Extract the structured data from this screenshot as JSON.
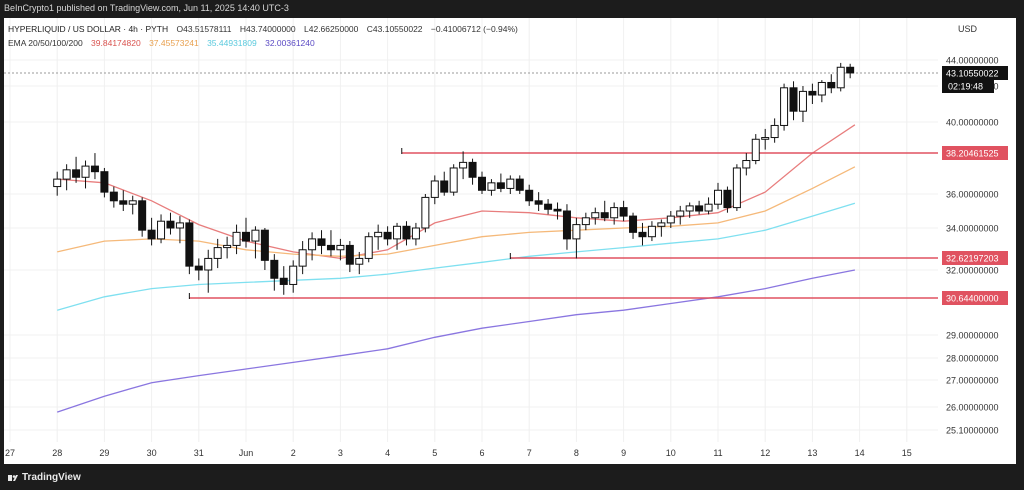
{
  "header": {
    "published": "BeInCrypto1 published on TradingView.com, Jun 11, 2025 14:40 UTC-3"
  },
  "legend": {
    "symbol": "HYPERLIQUID / US DOLLAR · 4h · PYTH",
    "open": "O43.51578111",
    "high": "H43.74000000",
    "low": "L42.66250000",
    "close": "C43.10550022",
    "change": "−0.41006712 (−0.94%)",
    "ema_label": "EMA 20/50/100/200",
    "ema20": "39.84174820",
    "ema50": "37.45573241",
    "ema100": "35.44931809",
    "ema200": "32.00361240"
  },
  "currency": "USD",
  "footer": {
    "brand": "TradingView"
  },
  "colors": {
    "up": "#ffffff",
    "down": "#111111",
    "ema20": "#e87d7d",
    "ema50": "#f5b97a",
    "ema100": "#7fe0f0",
    "ema200": "#8a76e0",
    "level": "#e05260"
  },
  "chart_data": {
    "type": "candlestick",
    "x_ticks": [
      "27",
      "28",
      "29",
      "30",
      "31",
      "Jun",
      "2",
      "3",
      "4",
      "5",
      "6",
      "7",
      "8",
      "9",
      "10",
      "11",
      "12",
      "13",
      "14",
      "15"
    ],
    "y_ticks": [
      "25.10000000",
      "26.00000000",
      "27.00000000",
      "28.00000000",
      "29.00000000",
      "30.64400000",
      "32.00000000",
      "32.62197203",
      "34.00000000",
      "36.00000000",
      "38.20461525",
      "40.00000000",
      "42.00000000",
      "43.10550022",
      "44.00000000"
    ],
    "y_tick_values": [
      25.1,
      26,
      27,
      28,
      29,
      30.644,
      32,
      32.62197203,
      34,
      36,
      38.20461525,
      40,
      42,
      43.10550022,
      44
    ],
    "y_tick_highlight": [
      "",
      "",
      "",
      "",
      "",
      "level",
      "",
      "level",
      "",
      "",
      "level",
      "",
      "",
      "price",
      ""
    ],
    "current_price": "43.10550022",
    "countdown": "02:19:48",
    "levels": [
      {
        "value": 38.20461525,
        "label": "38.20461525",
        "start_day": 3.3
      },
      {
        "value": 32.62197203,
        "label": "32.62197203",
        "start_day": 5.6
      },
      {
        "value": 30.644,
        "label": "30.64400000",
        "start_day": -1.2
      }
    ],
    "ohlc": [
      {
        "t": -4.0,
        "o": 36.4,
        "h": 37.2,
        "l": 35.9,
        "c": 36.8
      },
      {
        "t": -3.8,
        "o": 36.8,
        "h": 37.6,
        "l": 36.2,
        "c": 37.3
      },
      {
        "t": -3.6,
        "o": 37.3,
        "h": 38.0,
        "l": 36.6,
        "c": 36.9
      },
      {
        "t": -3.4,
        "o": 36.9,
        "h": 37.8,
        "l": 36.3,
        "c": 37.5
      },
      {
        "t": -3.2,
        "o": 37.5,
        "h": 38.2,
        "l": 36.8,
        "c": 37.2
      },
      {
        "t": -3.0,
        "o": 37.2,
        "h": 37.4,
        "l": 35.8,
        "c": 36.1
      },
      {
        "t": -2.8,
        "o": 36.1,
        "h": 36.4,
        "l": 35.2,
        "c": 35.6
      },
      {
        "t": -2.6,
        "o": 35.6,
        "h": 36.2,
        "l": 35.0,
        "c": 35.4
      },
      {
        "t": -2.4,
        "o": 35.4,
        "h": 35.9,
        "l": 34.8,
        "c": 35.6
      },
      {
        "t": -2.2,
        "o": 35.6,
        "h": 35.8,
        "l": 33.6,
        "c": 33.9
      },
      {
        "t": -2.0,
        "o": 33.9,
        "h": 34.6,
        "l": 33.2,
        "c": 33.5
      },
      {
        "t": -1.8,
        "o": 33.5,
        "h": 34.8,
        "l": 33.3,
        "c": 34.4
      },
      {
        "t": -1.6,
        "o": 34.4,
        "h": 34.9,
        "l": 33.7,
        "c": 34.0
      },
      {
        "t": -1.4,
        "o": 34.0,
        "h": 34.7,
        "l": 33.3,
        "c": 34.3
      },
      {
        "t": -1.2,
        "o": 34.3,
        "h": 34.5,
        "l": 31.8,
        "c": 32.2
      },
      {
        "t": -1.0,
        "o": 32.2,
        "h": 32.6,
        "l": 31.5,
        "c": 32.0
      },
      {
        "t": -0.8,
        "o": 32.0,
        "h": 33.0,
        "l": 30.9,
        "c": 32.6
      },
      {
        "t": -0.6,
        "o": 32.6,
        "h": 33.5,
        "l": 32.1,
        "c": 33.1
      },
      {
        "t": -0.4,
        "o": 33.1,
        "h": 33.6,
        "l": 32.6,
        "c": 33.2
      },
      {
        "t": -0.2,
        "o": 33.2,
        "h": 34.2,
        "l": 32.8,
        "c": 33.8
      },
      {
        "t": 0.0,
        "o": 33.8,
        "h": 34.6,
        "l": 33.1,
        "c": 33.4
      },
      {
        "t": 0.2,
        "o": 33.4,
        "h": 34.1,
        "l": 32.6,
        "c": 33.9
      },
      {
        "t": 0.4,
        "o": 33.9,
        "h": 34.0,
        "l": 32.0,
        "c": 32.5
      },
      {
        "t": 0.6,
        "o": 32.5,
        "h": 32.8,
        "l": 31.0,
        "c": 31.6
      },
      {
        "t": 0.8,
        "o": 31.6,
        "h": 32.2,
        "l": 30.8,
        "c": 31.3
      },
      {
        "t": 1.0,
        "o": 31.3,
        "h": 32.5,
        "l": 30.9,
        "c": 32.2
      },
      {
        "t": 1.2,
        "o": 32.2,
        "h": 33.4,
        "l": 31.8,
        "c": 33.0
      },
      {
        "t": 1.4,
        "o": 33.0,
        "h": 33.8,
        "l": 32.5,
        "c": 33.5
      },
      {
        "t": 1.6,
        "o": 33.5,
        "h": 33.9,
        "l": 32.8,
        "c": 33.2
      },
      {
        "t": 1.8,
        "o": 33.2,
        "h": 33.9,
        "l": 32.7,
        "c": 33.0
      },
      {
        "t": 2.0,
        "o": 33.0,
        "h": 33.5,
        "l": 32.5,
        "c": 33.2
      },
      {
        "t": 2.2,
        "o": 33.2,
        "h": 33.4,
        "l": 31.9,
        "c": 32.3
      },
      {
        "t": 2.4,
        "o": 32.3,
        "h": 32.9,
        "l": 31.8,
        "c": 32.6
      },
      {
        "t": 2.6,
        "o": 32.6,
        "h": 33.8,
        "l": 32.4,
        "c": 33.6
      },
      {
        "t": 2.8,
        "o": 33.6,
        "h": 34.2,
        "l": 33.0,
        "c": 33.8
      },
      {
        "t": 3.0,
        "o": 33.8,
        "h": 34.1,
        "l": 33.2,
        "c": 33.5
      },
      {
        "t": 3.2,
        "o": 33.5,
        "h": 34.3,
        "l": 33.0,
        "c": 34.1
      },
      {
        "t": 3.4,
        "o": 34.1,
        "h": 34.4,
        "l": 33.2,
        "c": 33.5
      },
      {
        "t": 3.6,
        "o": 33.5,
        "h": 34.3,
        "l": 33.2,
        "c": 34.0
      },
      {
        "t": 3.8,
        "o": 34.0,
        "h": 36.0,
        "l": 33.8,
        "c": 35.8
      },
      {
        "t": 4.0,
        "o": 35.8,
        "h": 37.0,
        "l": 35.4,
        "c": 36.7
      },
      {
        "t": 4.2,
        "o": 36.7,
        "h": 37.2,
        "l": 35.9,
        "c": 36.1
      },
      {
        "t": 4.4,
        "o": 36.1,
        "h": 37.6,
        "l": 35.9,
        "c": 37.4
      },
      {
        "t": 4.6,
        "o": 37.4,
        "h": 38.3,
        "l": 36.8,
        "c": 37.7
      },
      {
        "t": 4.8,
        "o": 37.7,
        "h": 37.9,
        "l": 36.5,
        "c": 36.9
      },
      {
        "t": 5.0,
        "o": 36.9,
        "h": 37.2,
        "l": 36.0,
        "c": 36.2
      },
      {
        "t": 5.2,
        "o": 36.2,
        "h": 36.8,
        "l": 35.9,
        "c": 36.6
      },
      {
        "t": 5.4,
        "o": 36.6,
        "h": 37.1,
        "l": 36.1,
        "c": 36.3
      },
      {
        "t": 5.6,
        "o": 36.3,
        "h": 37.0,
        "l": 36.0,
        "c": 36.8
      },
      {
        "t": 5.8,
        "o": 36.8,
        "h": 37.0,
        "l": 36.0,
        "c": 36.2
      },
      {
        "t": 6.0,
        "o": 36.2,
        "h": 36.5,
        "l": 35.3,
        "c": 35.6
      },
      {
        "t": 6.2,
        "o": 35.6,
        "h": 36.1,
        "l": 35.0,
        "c": 35.4
      },
      {
        "t": 6.4,
        "o": 35.4,
        "h": 35.7,
        "l": 34.8,
        "c": 35.1
      },
      {
        "t": 6.6,
        "o": 35.1,
        "h": 35.5,
        "l": 34.5,
        "c": 35.0
      },
      {
        "t": 6.8,
        "o": 35.0,
        "h": 35.4,
        "l": 33.0,
        "c": 33.5
      },
      {
        "t": 7.0,
        "o": 33.5,
        "h": 34.6,
        "l": 32.6,
        "c": 34.2
      },
      {
        "t": 7.2,
        "o": 34.2,
        "h": 34.9,
        "l": 33.9,
        "c": 34.6
      },
      {
        "t": 7.4,
        "o": 34.6,
        "h": 35.2,
        "l": 34.2,
        "c": 34.9
      },
      {
        "t": 7.6,
        "o": 34.9,
        "h": 35.6,
        "l": 34.4,
        "c": 34.6
      },
      {
        "t": 7.8,
        "o": 34.6,
        "h": 35.5,
        "l": 34.2,
        "c": 35.2
      },
      {
        "t": 8.0,
        "o": 35.2,
        "h": 35.6,
        "l": 34.4,
        "c": 34.7
      },
      {
        "t": 8.2,
        "o": 34.7,
        "h": 34.9,
        "l": 33.5,
        "c": 33.8
      },
      {
        "t": 8.4,
        "o": 33.8,
        "h": 34.3,
        "l": 33.2,
        "c": 33.6
      },
      {
        "t": 8.6,
        "o": 33.6,
        "h": 34.4,
        "l": 33.4,
        "c": 34.1
      },
      {
        "t": 8.8,
        "o": 34.1,
        "h": 34.5,
        "l": 33.6,
        "c": 34.3
      },
      {
        "t": 9.0,
        "o": 34.3,
        "h": 35.0,
        "l": 34.0,
        "c": 34.7
      },
      {
        "t": 9.2,
        "o": 34.7,
        "h": 35.3,
        "l": 34.2,
        "c": 35.0
      },
      {
        "t": 9.4,
        "o": 35.0,
        "h": 35.5,
        "l": 34.6,
        "c": 35.3
      },
      {
        "t": 9.6,
        "o": 35.3,
        "h": 35.6,
        "l": 34.8,
        "c": 35.0
      },
      {
        "t": 9.8,
        "o": 35.0,
        "h": 35.8,
        "l": 34.8,
        "c": 35.4
      },
      {
        "t": 10.0,
        "o": 35.4,
        "h": 36.6,
        "l": 35.1,
        "c": 36.2
      },
      {
        "t": 10.2,
        "o": 36.2,
        "h": 36.4,
        "l": 34.9,
        "c": 35.2
      },
      {
        "t": 10.4,
        "o": 35.2,
        "h": 37.6,
        "l": 35.0,
        "c": 37.4
      },
      {
        "t": 10.6,
        "o": 37.4,
        "h": 38.2,
        "l": 37.0,
        "c": 37.8
      },
      {
        "t": 10.8,
        "o": 37.8,
        "h": 39.3,
        "l": 37.6,
        "c": 39.0
      },
      {
        "t": 11.0,
        "o": 39.0,
        "h": 39.6,
        "l": 38.4,
        "c": 39.1
      },
      {
        "t": 11.2,
        "o": 39.1,
        "h": 40.2,
        "l": 38.8,
        "c": 39.8
      },
      {
        "t": 11.4,
        "o": 39.8,
        "h": 42.2,
        "l": 39.5,
        "c": 41.9
      },
      {
        "t": 11.6,
        "o": 41.9,
        "h": 42.4,
        "l": 40.1,
        "c": 40.6
      },
      {
        "t": 11.8,
        "o": 40.6,
        "h": 42.0,
        "l": 40.0,
        "c": 41.7
      },
      {
        "t": 12.0,
        "o": 41.7,
        "h": 42.2,
        "l": 41.0,
        "c": 41.5
      },
      {
        "t": 12.2,
        "o": 41.5,
        "h": 42.5,
        "l": 41.1,
        "c": 42.3
      },
      {
        "t": 12.4,
        "o": 42.3,
        "h": 43.0,
        "l": 41.6,
        "c": 41.9
      },
      {
        "t": 12.6,
        "o": 41.9,
        "h": 43.8,
        "l": 41.7,
        "c": 43.5
      },
      {
        "t": 12.8,
        "o": 43.5,
        "h": 43.74,
        "l": 42.66,
        "c": 43.11
      }
    ],
    "ema": [
      {
        "name": "EMA 20",
        "color_key": "ema20",
        "points": [
          [
            -4.0,
            36.8
          ],
          [
            -3.0,
            36.6
          ],
          [
            -2.0,
            35.6
          ],
          [
            -1.0,
            34.2
          ],
          [
            0.0,
            33.4
          ],
          [
            1.0,
            32.9
          ],
          [
            2.0,
            32.6
          ],
          [
            3.0,
            33.0
          ],
          [
            4.0,
            34.3
          ],
          [
            5.0,
            35.0
          ],
          [
            6.0,
            34.9
          ],
          [
            7.0,
            34.6
          ],
          [
            8.0,
            34.4
          ],
          [
            9.0,
            34.6
          ],
          [
            10.0,
            34.9
          ],
          [
            11.0,
            36.1
          ],
          [
            12.0,
            38.2
          ],
          [
            12.9,
            39.84
          ]
        ]
      },
      {
        "name": "EMA 50",
        "color_key": "ema50",
        "points": [
          [
            -4.0,
            32.9
          ],
          [
            -3.0,
            33.4
          ],
          [
            -2.0,
            33.5
          ],
          [
            -1.0,
            33.4
          ],
          [
            0.0,
            33.0
          ],
          [
            1.0,
            32.8
          ],
          [
            2.0,
            32.7
          ],
          [
            3.0,
            32.8
          ],
          [
            4.0,
            33.2
          ],
          [
            5.0,
            33.6
          ],
          [
            6.0,
            33.8
          ],
          [
            7.0,
            33.9
          ],
          [
            8.0,
            34.0
          ],
          [
            9.0,
            34.1
          ],
          [
            10.0,
            34.3
          ],
          [
            11.0,
            35.0
          ],
          [
            12.0,
            36.3
          ],
          [
            12.9,
            37.46
          ]
        ]
      },
      {
        "name": "EMA 100",
        "color_key": "ema100",
        "points": [
          [
            -4.0,
            30.1
          ],
          [
            -3.0,
            30.7
          ],
          [
            -2.0,
            31.1
          ],
          [
            -1.0,
            31.3
          ],
          [
            0.0,
            31.4
          ],
          [
            1.0,
            31.5
          ],
          [
            2.0,
            31.6
          ],
          [
            3.0,
            31.8
          ],
          [
            4.0,
            32.1
          ],
          [
            5.0,
            32.4
          ],
          [
            6.0,
            32.7
          ],
          [
            7.0,
            32.9
          ],
          [
            8.0,
            33.1
          ],
          [
            9.0,
            33.3
          ],
          [
            10.0,
            33.5
          ],
          [
            11.0,
            33.9
          ],
          [
            12.0,
            34.7
          ],
          [
            12.9,
            35.45
          ]
        ]
      },
      {
        "name": "EMA 200",
        "color_key": "ema200",
        "points": [
          [
            -4.0,
            25.8
          ],
          [
            -3.0,
            26.4
          ],
          [
            -2.0,
            26.9
          ],
          [
            -1.0,
            27.2
          ],
          [
            0.0,
            27.5
          ],
          [
            1.0,
            27.8
          ],
          [
            2.0,
            28.1
          ],
          [
            3.0,
            28.4
          ],
          [
            4.0,
            28.9
          ],
          [
            5.0,
            29.3
          ],
          [
            6.0,
            29.6
          ],
          [
            7.0,
            29.9
          ],
          [
            8.0,
            30.1
          ],
          [
            9.0,
            30.4
          ],
          [
            10.0,
            30.7
          ],
          [
            11.0,
            31.1
          ],
          [
            12.0,
            31.6
          ],
          [
            12.9,
            32.0
          ]
        ]
      }
    ]
  }
}
